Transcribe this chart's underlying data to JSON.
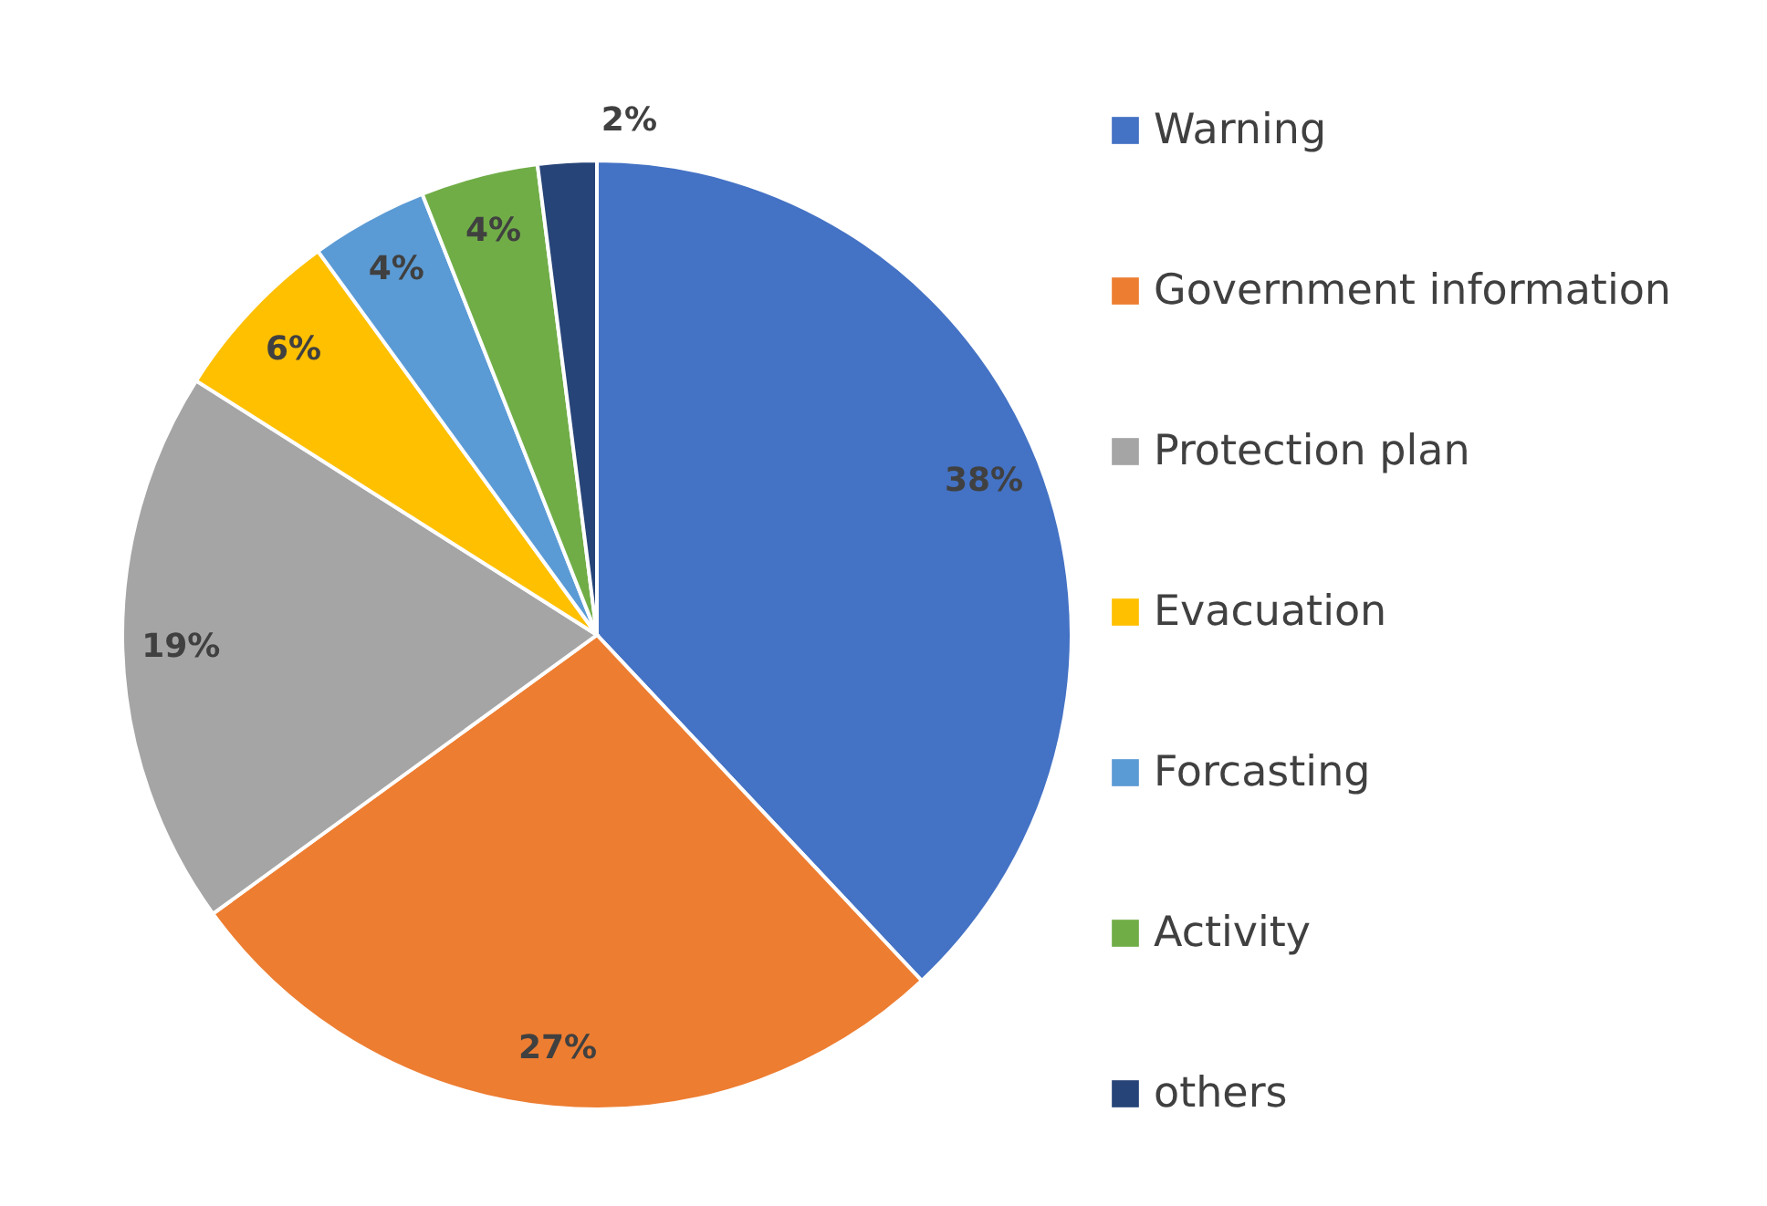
{
  "chart_data": {
    "type": "pie",
    "categories": [
      "Warning",
      "Government information",
      "Protection plan",
      "Evacuation",
      "Forcasting",
      "Activity",
      "others"
    ],
    "values": [
      38,
      27,
      19,
      6,
      4,
      4,
      2
    ],
    "value_labels": [
      "38%",
      "27%",
      "19%",
      "6%",
      "4%",
      "4%",
      "2%"
    ],
    "colors": [
      "#4472c4",
      "#ed7d31",
      "#a5a5a5",
      "#ffc000",
      "#5b9bd5",
      "#70ad47",
      "#264478"
    ],
    "legend": "right"
  }
}
